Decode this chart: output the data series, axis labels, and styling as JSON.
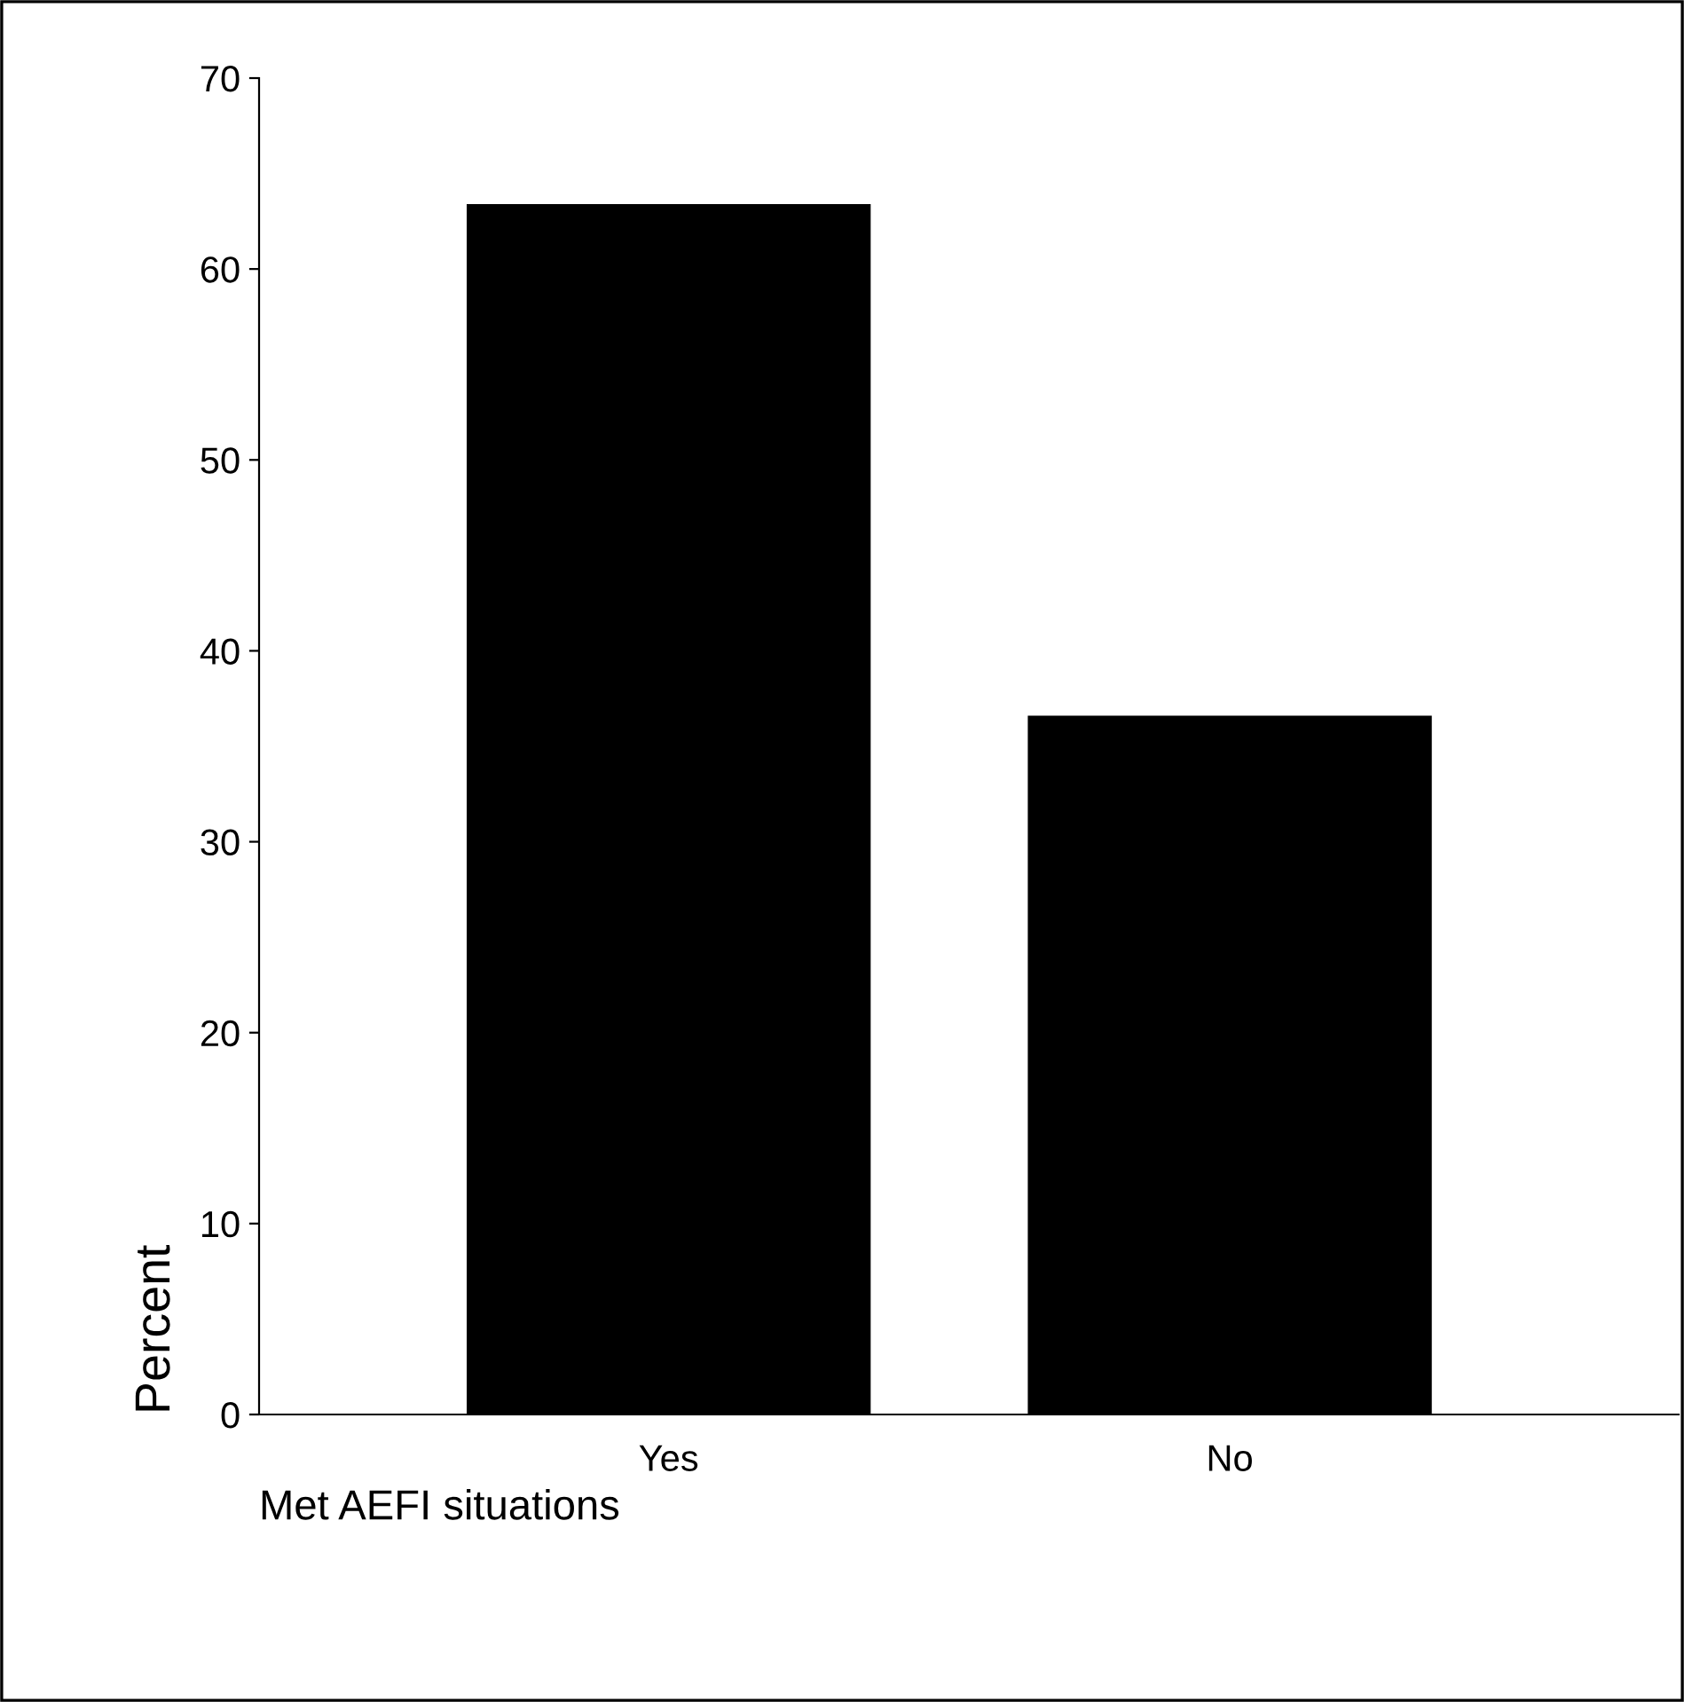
{
  "chart_data": {
    "type": "bar",
    "xlabel": "Met AEFI situations",
    "ylabel": "Percent",
    "categories": [
      "Yes",
      "No"
    ],
    "values": [
      63.4,
      36.6
    ],
    "color": "#000000",
    "ylim": [
      0,
      70
    ],
    "yticks": [
      0,
      10,
      20,
      30,
      40,
      50,
      60,
      70
    ],
    "grid": false
  }
}
